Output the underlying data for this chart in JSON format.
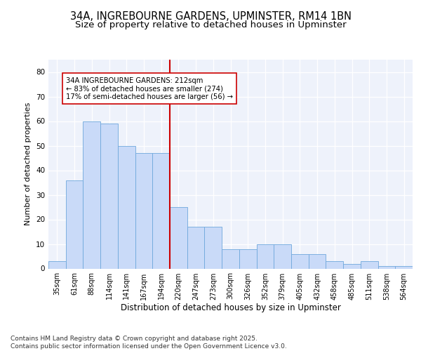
{
  "title_line1": "34A, INGREBOURNE GARDENS, UPMINSTER, RM14 1BN",
  "title_line2": "Size of property relative to detached houses in Upminster",
  "xlabel": "Distribution of detached houses by size in Upminster",
  "ylabel": "Number of detached properties",
  "categories": [
    "35sqm",
    "61sqm",
    "88sqm",
    "114sqm",
    "141sqm",
    "167sqm",
    "194sqm",
    "220sqm",
    "247sqm",
    "273sqm",
    "300sqm",
    "326sqm",
    "352sqm",
    "379sqm",
    "405sqm",
    "432sqm",
    "458sqm",
    "485sqm",
    "511sqm",
    "538sqm",
    "564sqm"
  ],
  "values": [
    3,
    36,
    60,
    59,
    50,
    47,
    47,
    25,
    17,
    17,
    8,
    8,
    10,
    10,
    6,
    6,
    3,
    2,
    3,
    1,
    1
  ],
  "bar_color": "#c9daf8",
  "bar_edge_color": "#6fa8dc",
  "background_color": "#eef2fb",
  "grid_color": "#ffffff",
  "vline_color": "#cc0000",
  "annotation_text": "34A INGREBOURNE GARDENS: 212sqm\n← 83% of detached houses are smaller (274)\n17% of semi-detached houses are larger (56) →",
  "annotation_box_color": "#ffffff",
  "annotation_box_edge": "#cc0000",
  "ylim": [
    0,
    85
  ],
  "yticks": [
    0,
    10,
    20,
    30,
    40,
    50,
    60,
    70,
    80
  ],
  "footnote": "Contains HM Land Registry data © Crown copyright and database right 2025.\nContains public sector information licensed under the Open Government Licence v3.0.",
  "title_fontsize": 10.5,
  "subtitle_fontsize": 9.5,
  "axis_label_fontsize": 8.5,
  "tick_fontsize": 7,
  "footnote_fontsize": 6.5,
  "ylabel_fontsize": 8
}
